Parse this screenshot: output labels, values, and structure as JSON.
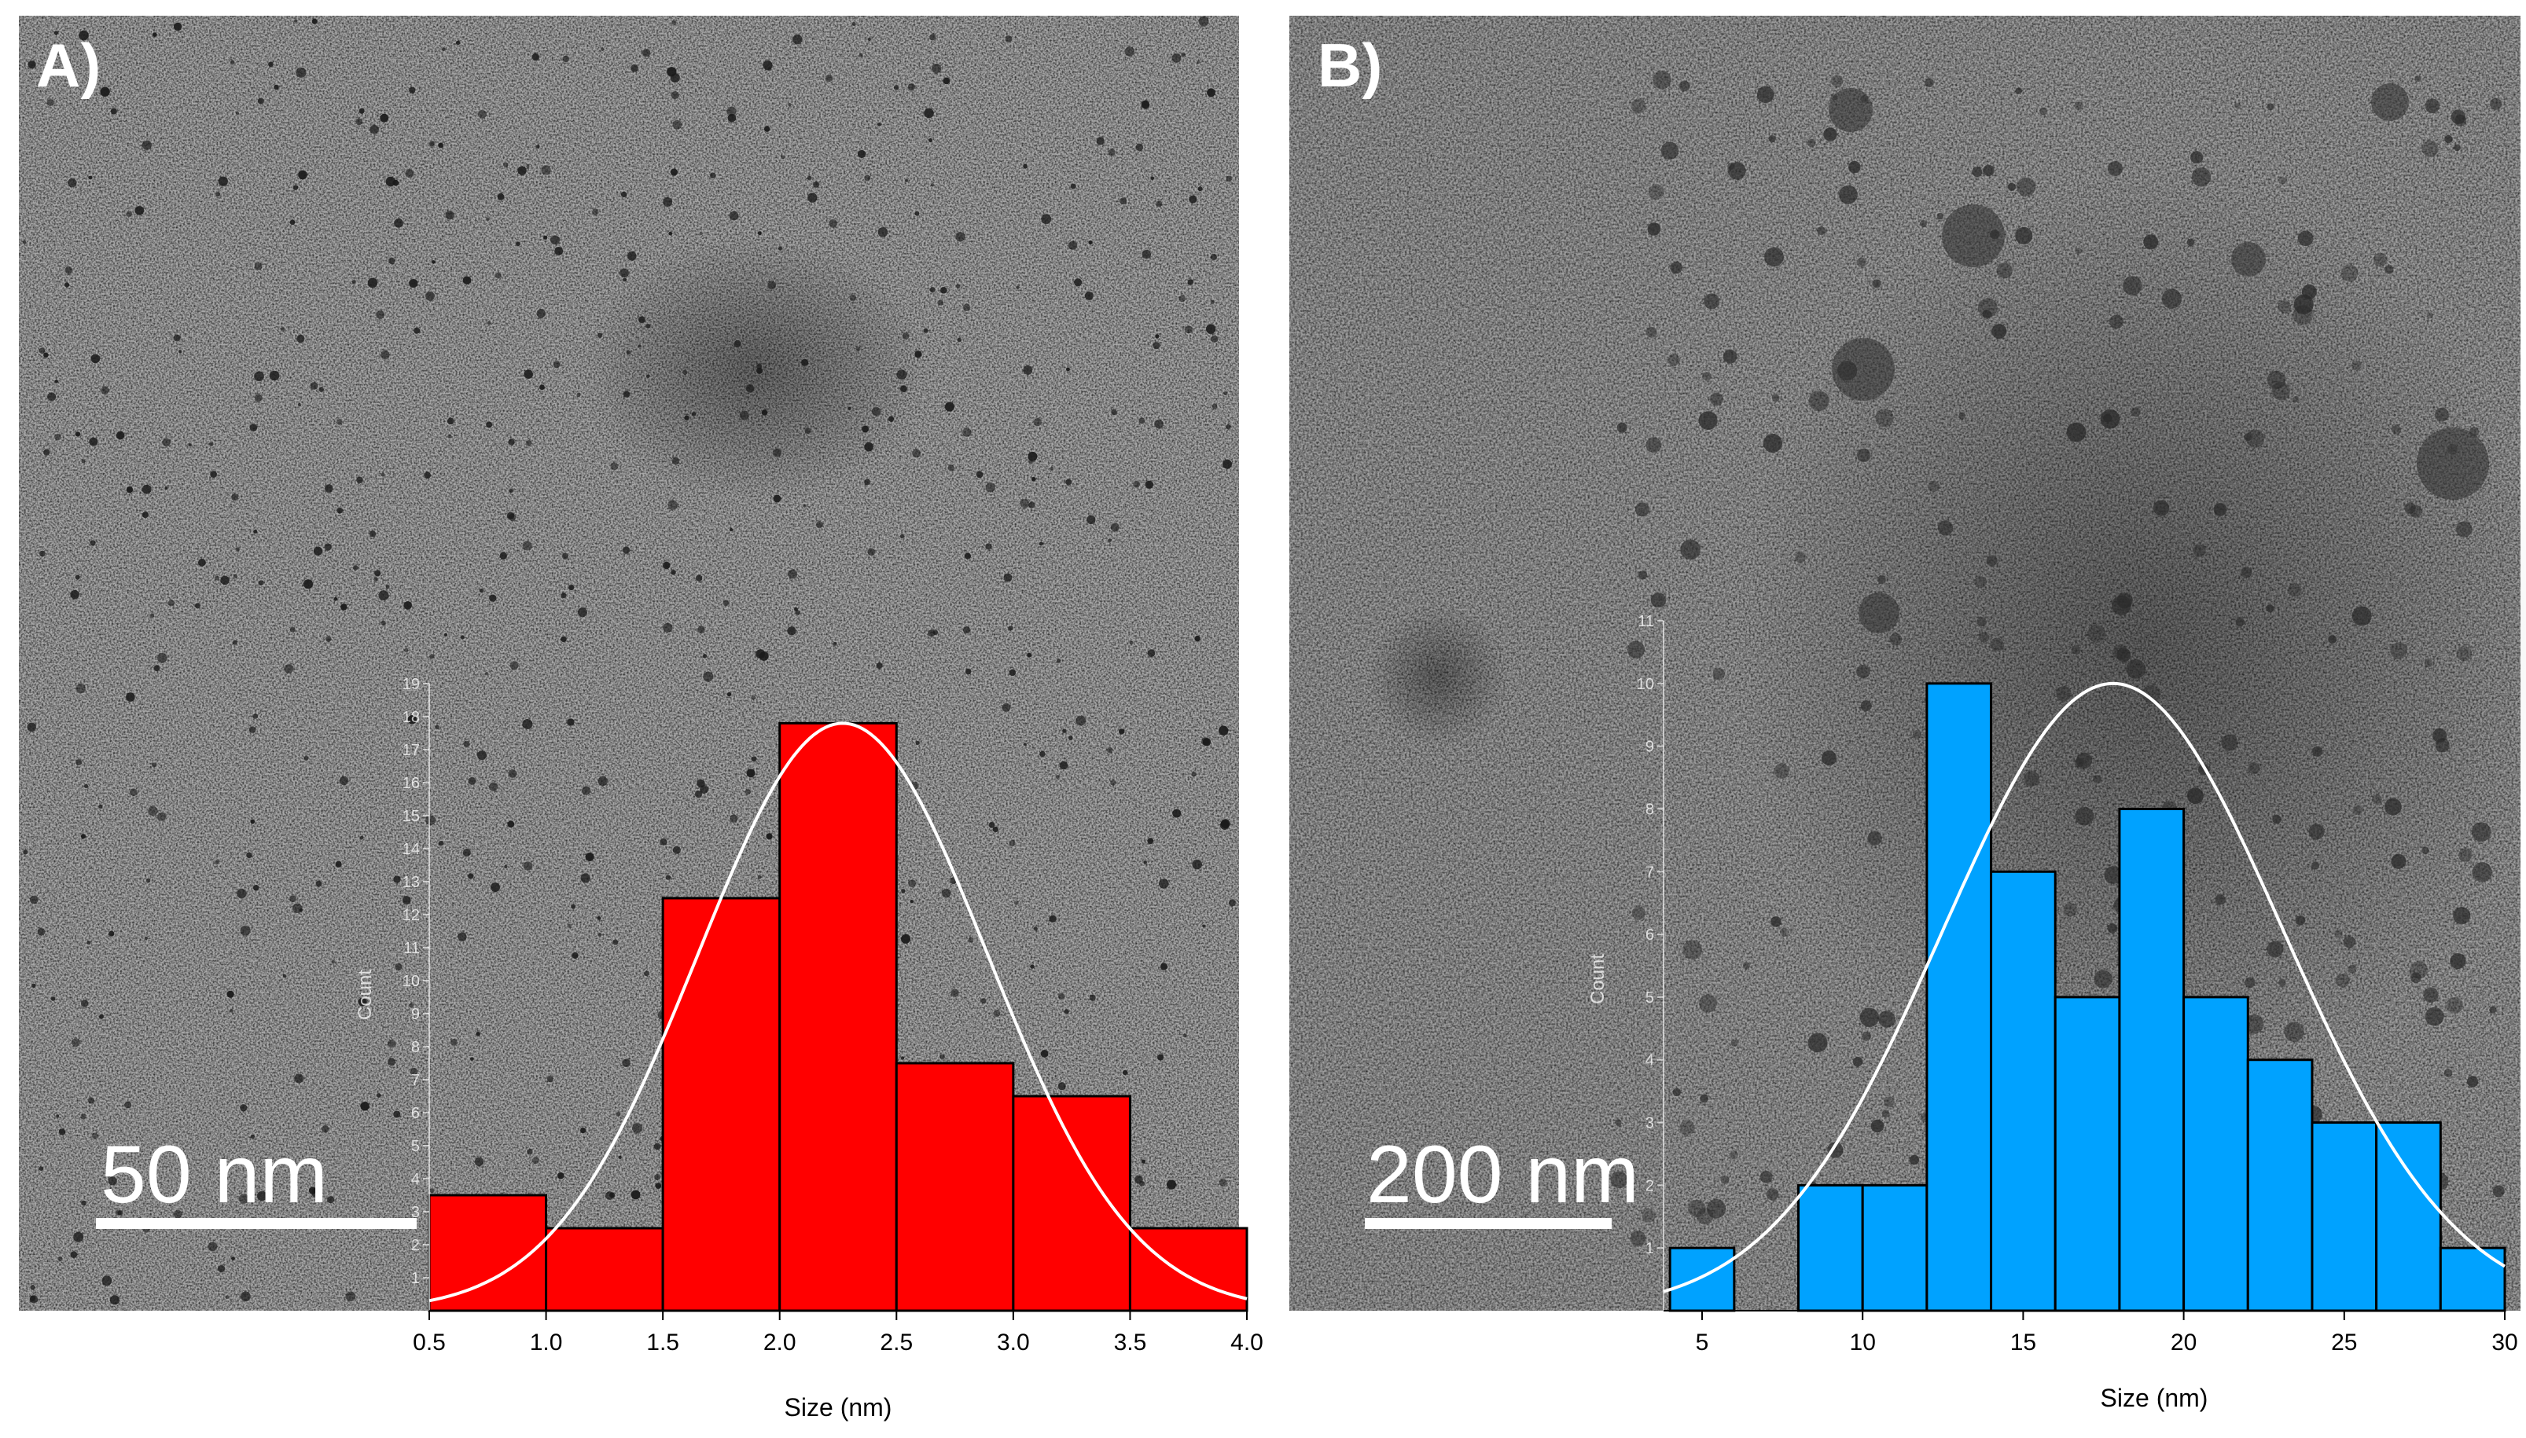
{
  "chart_data": [
    {
      "panel_label": "A)",
      "type": "bar",
      "kind": "histogram",
      "bar_color": "#ff0000",
      "fit_curve_color": "#ffffff",
      "xlabel": "Size (nm)",
      "ylabel": "Count",
      "xlim": [
        0.5,
        4.0
      ],
      "ylim": [
        0,
        19
      ],
      "x_ticks": [
        "0.5",
        "1.0",
        "1.5",
        "2.0",
        "2.5",
        "3.0",
        "3.5",
        "4.0"
      ],
      "y_ticks": [
        "1",
        "2",
        "3",
        "4",
        "5",
        "6",
        "7",
        "8",
        "9",
        "10",
        "11",
        "12",
        "13",
        "14",
        "15",
        "16",
        "17",
        "18",
        "19"
      ],
      "bins": [
        {
          "from": 0.5,
          "to": 1.0,
          "count": 3.5
        },
        {
          "from": 1.0,
          "to": 1.5,
          "count": 2.5
        },
        {
          "from": 1.5,
          "to": 2.0,
          "count": 12.5
        },
        {
          "from": 2.0,
          "to": 2.5,
          "count": 17.8
        },
        {
          "from": 2.5,
          "to": 3.0,
          "count": 7.5
        },
        {
          "from": 3.0,
          "to": 3.5,
          "count": 6.5
        },
        {
          "from": 3.5,
          "to": 4.0,
          "count": 2.5
        }
      ],
      "gaussian_fit": {
        "mean": 2.27,
        "sigma": 0.62,
        "amplitude": 17.8
      },
      "scale_bar": "50  nm"
    },
    {
      "panel_label": "B)",
      "type": "bar",
      "kind": "histogram",
      "bar_color": "#00a2ff",
      "fit_curve_color": "#ffffff",
      "xlabel": "Size (nm)",
      "ylabel": "Count",
      "xlim": [
        3.8,
        30
      ],
      "ylim": [
        0,
        11
      ],
      "x_ticks": [
        "5",
        "10",
        "15",
        "20",
        "25",
        "30"
      ],
      "y_ticks": [
        "1",
        "2",
        "3",
        "4",
        "5",
        "6",
        "7",
        "8",
        "9",
        "10",
        "11"
      ],
      "bins": [
        {
          "from": 4,
          "to": 6,
          "count": 1
        },
        {
          "from": 6,
          "to": 8,
          "count": 0
        },
        {
          "from": 8,
          "to": 10,
          "count": 2
        },
        {
          "from": 10,
          "to": 12,
          "count": 2
        },
        {
          "from": 12,
          "to": 14,
          "count": 10
        },
        {
          "from": 14,
          "to": 16,
          "count": 7
        },
        {
          "from": 16,
          "to": 18,
          "count": 5
        },
        {
          "from": 18,
          "to": 20,
          "count": 8
        },
        {
          "from": 20,
          "to": 22,
          "count": 5
        },
        {
          "from": 22,
          "to": 24,
          "count": 4
        },
        {
          "from": 24,
          "to": 26,
          "count": 3
        },
        {
          "from": 26,
          "to": 28,
          "count": 3
        },
        {
          "from": 28,
          "to": 30,
          "count": 1
        }
      ],
      "gaussian_fit": {
        "mean": 17.8,
        "sigma": 5.3,
        "amplitude": 10
      },
      "scale_bar": "200  nm"
    }
  ]
}
